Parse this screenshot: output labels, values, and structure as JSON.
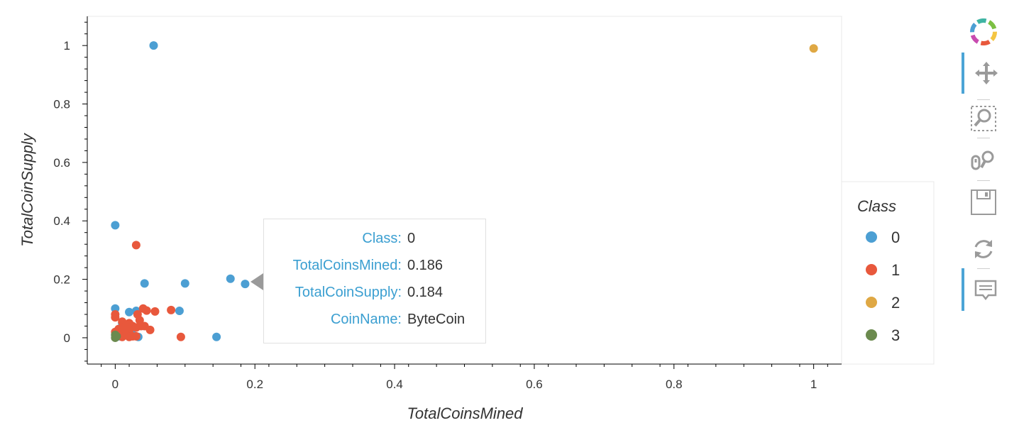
{
  "chart_data": {
    "type": "scatter",
    "xlabel": "TotalCoinsMined",
    "ylabel": "TotalCoinSupply",
    "xlim": [
      -0.04,
      1.04
    ],
    "ylim": [
      -0.09,
      1.1
    ],
    "xticks": [
      0,
      0.2,
      0.4,
      0.6,
      0.8,
      1
    ],
    "xtick_labels": [
      "0",
      "0.2",
      "0.4",
      "0.6",
      "0.8",
      "1"
    ],
    "yticks": [
      0,
      0.2,
      0.4,
      0.6,
      0.8,
      1
    ],
    "ytick_labels": [
      "0",
      "0.2",
      "0.4",
      "0.6",
      "0.8",
      "1"
    ],
    "grid": false,
    "legend_title": "Class",
    "legend_position": "right",
    "series": [
      {
        "name": "0",
        "color": "#4c9fd3",
        "points": [
          [
            0.055,
            1.0
          ],
          [
            0.0,
            0.385
          ],
          [
            0.0,
            0.1
          ],
          [
            0.042,
            0.186
          ],
          [
            0.1,
            0.186
          ],
          [
            0.165,
            0.202
          ],
          [
            0.186,
            0.184
          ],
          [
            0.02,
            0.088
          ],
          [
            0.03,
            0.092
          ],
          [
            0.092,
            0.092
          ],
          [
            0.145,
            0.003
          ],
          [
            0.01,
            0.05
          ],
          [
            0.015,
            0.02
          ],
          [
            0.033,
            0.003
          ],
          [
            0.005,
            0.005
          ],
          [
            0.0,
            0.01
          ],
          [
            0.025,
            0.01
          ]
        ]
      },
      {
        "name": "1",
        "color": "#e8583c",
        "points": [
          [
            0.03,
            0.317
          ],
          [
            0.0,
            0.08
          ],
          [
            0.0,
            0.07
          ],
          [
            0.04,
            0.1
          ],
          [
            0.045,
            0.093
          ],
          [
            0.057,
            0.09
          ],
          [
            0.08,
            0.095
          ],
          [
            0.032,
            0.08
          ],
          [
            0.035,
            0.06
          ],
          [
            0.02,
            0.05
          ],
          [
            0.01,
            0.055
          ],
          [
            0.005,
            0.03
          ],
          [
            0.015,
            0.04
          ],
          [
            0.025,
            0.04
          ],
          [
            0.042,
            0.04
          ],
          [
            0.05,
            0.027
          ],
          [
            0.03,
            0.035
          ],
          [
            0.02,
            0.025
          ],
          [
            0.01,
            0.02
          ],
          [
            0.0,
            0.02
          ],
          [
            0.015,
            0.01
          ],
          [
            0.025,
            0.005
          ],
          [
            0.03,
            0.005
          ],
          [
            0.01,
            0.003
          ],
          [
            0.02,
            0.003
          ],
          [
            0.094,
            0.003
          ],
          [
            0.037,
            0.04
          ],
          [
            0.005,
            0.01
          ]
        ]
      },
      {
        "name": "2",
        "color": "#dfa844",
        "points": [
          [
            1.0,
            0.99
          ]
        ]
      },
      {
        "name": "3",
        "color": "#6b8a4e",
        "points": [
          [
            0.0,
            0.01
          ],
          [
            0.002,
            0.005
          ],
          [
            0.0,
            0.0
          ]
        ]
      }
    ]
  },
  "tooltip": {
    "rows": [
      {
        "key": "Class:",
        "value": "0"
      },
      {
        "key": "TotalCoinsMined:",
        "value": "0.186"
      },
      {
        "key": "TotalCoinSupply:",
        "value": "0.184"
      },
      {
        "key": "CoinName:",
        "value": "ByteCoin"
      }
    ]
  },
  "toolbar": {
    "tools": [
      {
        "icon": "bokeh-logo-icon",
        "active": false
      },
      {
        "icon": "pan-icon",
        "active": true
      },
      {
        "icon": "box-zoom-icon",
        "active": false
      },
      {
        "icon": "wheel-zoom-icon",
        "active": false
      },
      {
        "icon": "save-icon",
        "active": false
      },
      {
        "icon": "reset-icon",
        "active": false
      },
      {
        "icon": "hover-icon",
        "active": true
      }
    ],
    "accent_color": "#4ba4d6"
  }
}
